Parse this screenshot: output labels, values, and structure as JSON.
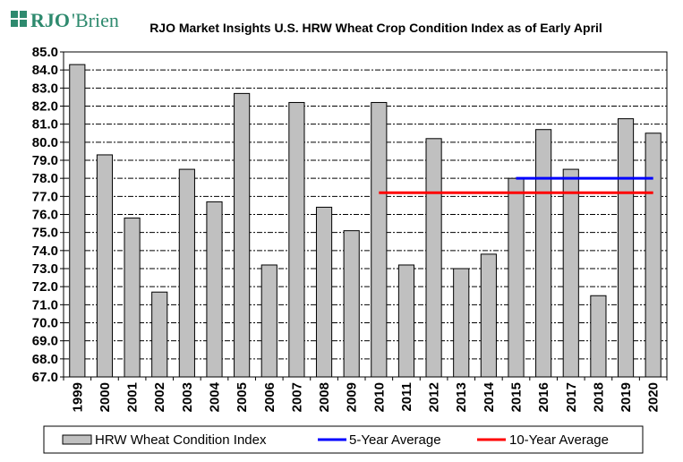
{
  "logo": {
    "text_rjo": "RJO",
    "text_brien": "'Brien",
    "color": "#2e8a6e"
  },
  "chart_data": {
    "type": "bar",
    "title": "RJO Market Insights U.S. HRW Wheat Crop Condition Index as of Early April",
    "xlabel": "",
    "ylabel": "",
    "ylim": [
      67.0,
      85.0
    ],
    "yticks": [
      "67.0",
      "68.0",
      "69.0",
      "70.0",
      "71.0",
      "72.0",
      "73.0",
      "74.0",
      "75.0",
      "76.0",
      "77.0",
      "78.0",
      "79.0",
      "80.0",
      "81.0",
      "82.0",
      "83.0",
      "84.0",
      "85.0"
    ],
    "grid": true,
    "legend_position": "bottom",
    "categories": [
      "1999",
      "2000",
      "2001",
      "2002",
      "2003",
      "2004",
      "2005",
      "2006",
      "2007",
      "2008",
      "2009",
      "2010",
      "2011",
      "2012",
      "2013",
      "2014",
      "2015",
      "2016",
      "2017",
      "2018",
      "2019",
      "2020"
    ],
    "series": [
      {
        "name": "HRW Wheat Condition Index",
        "type": "bar",
        "color": "#c0c0c0",
        "values": [
          84.3,
          79.3,
          75.8,
          71.7,
          78.5,
          76.7,
          82.7,
          73.2,
          82.2,
          76.4,
          75.1,
          82.2,
          73.2,
          80.2,
          73.0,
          73.8,
          78.0,
          80.7,
          78.5,
          71.5,
          81.3,
          80.5
        ]
      },
      {
        "name": "5-Year Average",
        "type": "line",
        "color": "#0000ff",
        "value": 78.0,
        "x_start": "2015",
        "x_end": "2020"
      },
      {
        "name": "10-Year Average",
        "type": "line",
        "color": "#ff0000",
        "value": 77.2,
        "x_start": "2010",
        "x_end": "2020"
      }
    ]
  }
}
